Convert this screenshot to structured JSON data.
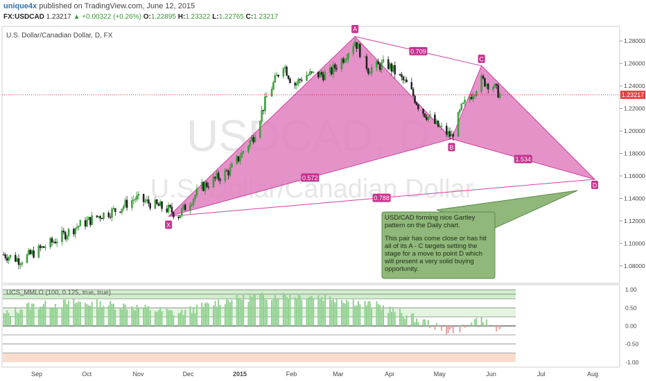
{
  "header": {
    "user": "unique4x",
    "published": "published on TradingView.com, June 12, 2015",
    "symbol": "FX:USDCAD",
    "last": "1.23217",
    "change": "+0.00322 (+0.26%)",
    "open_label": "O:",
    "open": "1.22895",
    "high_label": "H:",
    "high": "1.23322",
    "low_label": "L:",
    "low": "1.22765",
    "close_label": "C:",
    "close": "1.23217"
  },
  "chart_data": {
    "type": "candlestick",
    "title": "U.S. Dollar/Canadian Dollar, D, FX",
    "watermark_symbol": "USDCAD, D",
    "watermark_name": "U.S. Dollar/Canadian Dollar",
    "current_price": "1.23217",
    "ylim": [
      1.07,
      1.29
    ],
    "y_ticks": [
      "1.28000",
      "1.26000",
      "1.24000",
      "1.22000",
      "1.20000",
      "1.18000",
      "1.16000",
      "1.14000",
      "1.12000",
      "1.10000",
      "1.08000"
    ],
    "y_tick_values": [
      1.28,
      1.26,
      1.24,
      1.22,
      1.2,
      1.18,
      1.16,
      1.14,
      1.12,
      1.1,
      1.08
    ],
    "x_ticks": [
      "Sep",
      "Oct",
      "Nov",
      "Dec",
      "2015",
      "Feb",
      "Mar",
      "Apr",
      "May",
      "Jun",
      "Jul",
      "Aug"
    ],
    "x_tick_dates": [
      "2014-09-01",
      "2014-10-01",
      "2014-11-01",
      "2014-12-01",
      "2015-01-01",
      "2015-02-01",
      "2015-03-01",
      "2015-04-01",
      "2015-05-01",
      "2015-06-01",
      "2015-07-01",
      "2015-08-01"
    ],
    "x_range": [
      "2014-08-17",
      "2015-08-23"
    ],
    "price_anchors": [
      [
        "2014-08-18",
        1.09
      ],
      [
        "2014-08-28",
        1.085
      ],
      [
        "2014-09-15",
        1.1
      ],
      [
        "2014-10-01",
        1.115
      ],
      [
        "2014-10-15",
        1.125
      ],
      [
        "2014-10-25",
        1.13
      ],
      [
        "2014-11-05",
        1.14
      ],
      [
        "2014-11-25",
        1.13
      ],
      [
        "2014-12-01",
        1.125
      ],
      [
        "2014-12-15",
        1.15
      ],
      [
        "2015-01-01",
        1.165
      ],
      [
        "2015-01-15",
        1.195
      ],
      [
        "2015-01-23",
        1.23
      ],
      [
        "2015-02-02",
        1.26
      ],
      [
        "2015-02-08",
        1.24
      ],
      [
        "2015-02-15",
        1.25
      ],
      [
        "2015-03-01",
        1.25
      ],
      [
        "2015-03-10",
        1.265
      ],
      [
        "2015-03-17",
        1.28
      ],
      [
        "2015-03-25",
        1.255
      ],
      [
        "2015-04-05",
        1.26
      ],
      [
        "2015-04-18",
        1.24
      ],
      [
        "2015-04-25",
        1.22
      ],
      [
        "2015-05-05",
        1.205
      ],
      [
        "2015-05-14",
        1.195
      ],
      [
        "2015-05-20",
        1.22
      ],
      [
        "2015-06-01",
        1.245
      ],
      [
        "2015-06-08",
        1.24
      ],
      [
        "2015-06-12",
        1.232
      ]
    ],
    "pattern": {
      "name": "Gartley",
      "points": [
        {
          "label": "X",
          "date": "2014-11-25",
          "price": 1.124
        },
        {
          "label": "A",
          "date": "2015-03-17",
          "price": 1.284
        },
        {
          "label": "B",
          "date": "2015-05-14",
          "price": 1.193
        },
        {
          "label": "C",
          "date": "2015-06-01",
          "price": 1.258
        },
        {
          "label": "D",
          "date": "2015-08-08",
          "price": 1.157
        }
      ],
      "ratios": [
        {
          "label": "0.709",
          "from": "A",
          "to": "C"
        },
        {
          "label": "0.572",
          "from": "X",
          "to": "B"
        },
        {
          "label": "1.534",
          "from": "B",
          "to": "D"
        },
        {
          "label": "0.788",
          "from": "X",
          "to": "D"
        }
      ]
    },
    "callout": {
      "title": "USD/CAD forming nice Gartley pattern on the Daily chart.",
      "body": "This pair has come close or has hit all of its A - C targets setting the stage for a move to point D which will present a very solid buying opportunity."
    },
    "indicator": {
      "name": "UCS_MMLO (100, 0.125, true, true)",
      "ylim": [
        -1.1,
        1.1
      ],
      "y_ticks": [
        "1.00",
        "0.50",
        "0.00",
        "-0.50",
        "-1.00"
      ],
      "y_tick_values": [
        1.0,
        0.5,
        0.0,
        -0.5,
        -1.0
      ],
      "anchors": [
        [
          "2014-08-18",
          0.3
        ],
        [
          "2014-09-01",
          0.55
        ],
        [
          "2014-10-01",
          0.65
        ],
        [
          "2014-11-01",
          0.55
        ],
        [
          "2014-12-01",
          0.35
        ],
        [
          "2015-01-01",
          0.75
        ],
        [
          "2015-02-01",
          0.85
        ],
        [
          "2015-03-01",
          0.8
        ],
        [
          "2015-04-01",
          0.55
        ],
        [
          "2015-04-20",
          0.25
        ],
        [
          "2015-05-01",
          0.05
        ],
        [
          "2015-05-10",
          -0.15
        ],
        [
          "2015-05-20",
          -0.05
        ],
        [
          "2015-06-01",
          0.15
        ],
        [
          "2015-06-12",
          -0.08
        ]
      ]
    },
    "colors": {
      "bull": "#2e8b2e",
      "bear": "#1a1a1a",
      "pattern_fill": "#e07fc0",
      "pattern_line": "#d13fa0",
      "callout_bg": "#8fb87a",
      "hist_pos": "#8fd08f",
      "hist_neg": "#e8a0a0"
    }
  }
}
